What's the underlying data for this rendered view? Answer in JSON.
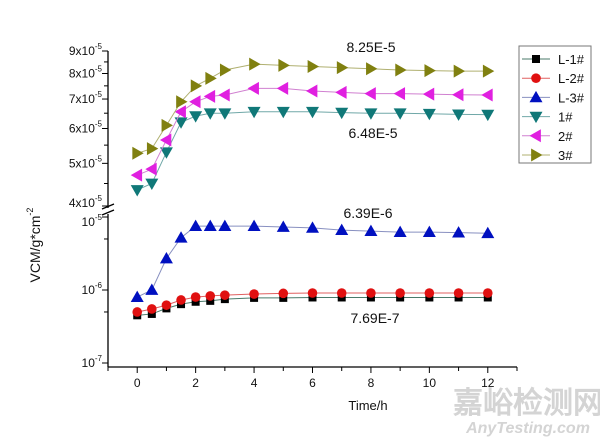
{
  "chart_data": {
    "type": "line",
    "xlabel": "Time/h",
    "ylabel": "VCM/g*cm",
    "ylabel_sup": "-2",
    "xlim": [
      -1,
      13
    ],
    "x_ticks": [
      "0",
      "2",
      "4",
      "6",
      "8",
      "10",
      "12"
    ],
    "y_scale": "log, broken axis",
    "y_upper_range": [
      4e-05,
      9e-05
    ],
    "y_lower_range": [
      1e-07,
      1e-05
    ],
    "y_upper_ticks": [
      {
        "value": 4e-05,
        "base": "4x10",
        "exp": "-5"
      },
      {
        "value": 5e-05,
        "base": "5x10",
        "exp": "-5"
      },
      {
        "value": 6e-05,
        "base": "6x10",
        "exp": "-5"
      },
      {
        "value": 7e-05,
        "base": "7x10",
        "exp": "-5"
      },
      {
        "value": 8e-05,
        "base": "8x10",
        "exp": "-5"
      },
      {
        "value": 9e-05,
        "base": "9x10",
        "exp": "-5"
      }
    ],
    "y_lower_ticks": [
      {
        "value": 1e-07,
        "base": "10",
        "exp": "-7"
      },
      {
        "value": 1e-06,
        "base": "10",
        "exp": "-6"
      },
      {
        "value": 1e-05,
        "base": "10",
        "exp": "-5"
      }
    ],
    "grid": false,
    "legend_position": "top-right",
    "x": [
      0,
      0.5,
      1,
      1.5,
      2,
      2.5,
      3,
      4,
      5,
      6,
      7,
      8,
      9,
      10,
      11,
      12
    ],
    "series": [
      {
        "name": "L-1#",
        "marker": "square",
        "color": "#000000",
        "line_color": "#4a7a6a",
        "axis": "lower",
        "values": [
          4.5e-07,
          4.7e-07,
          5.6e-07,
          6.4e-07,
          6.9e-07,
          7.1e-07,
          7.5e-07,
          7.8e-07,
          7.8e-07,
          7.9e-07,
          7.9e-07,
          7.9e-07,
          7.9e-07,
          7.9e-07,
          7.9e-07,
          7.9e-07
        ]
      },
      {
        "name": "L-2#",
        "marker": "circle",
        "color": "#e01010",
        "line_color": "#e06060",
        "axis": "lower",
        "values": [
          5e-07,
          5.5e-07,
          6.2e-07,
          7.3e-07,
          8e-07,
          8.3e-07,
          8.5e-07,
          8.8e-07,
          9e-07,
          9.1e-07,
          9.1e-07,
          9.1e-07,
          9.1e-07,
          9.1e-07,
          9.1e-07,
          9.1e-07
        ]
      },
      {
        "name": "L-3#",
        "marker": "triangle-up",
        "color": "#0010c0",
        "line_color": "#8890c0",
        "axis": "lower",
        "values": [
          8e-07,
          1e-06,
          2.7e-06,
          5.2e-06,
          7.5e-06,
          7.5e-06,
          7.5e-06,
          7.5e-06,
          7.3e-06,
          7.1e-06,
          6.6e-06,
          6.4e-06,
          6.2e-06,
          6.2e-06,
          6.1e-06,
          6e-06
        ]
      },
      {
        "name": "1#",
        "marker": "triangle-down",
        "color": "#107878",
        "line_color": "#70a8a8",
        "axis": "upper",
        "values": [
          4.35e-05,
          4.5e-05,
          5.3e-05,
          6.2e-05,
          6.4e-05,
          6.5e-05,
          6.5e-05,
          6.55e-05,
          6.55e-05,
          6.55e-05,
          6.52e-05,
          6.5e-05,
          6.5e-05,
          6.48e-05,
          6.46e-05,
          6.45e-05
        ]
      },
      {
        "name": "2#",
        "marker": "triangle-left",
        "color": "#e020e0",
        "line_color": "#d080d0",
        "axis": "upper",
        "values": [
          4.7e-05,
          4.85e-05,
          5.65e-05,
          6.55e-05,
          6.9e-05,
          7.1e-05,
          7.15e-05,
          7.4e-05,
          7.4e-05,
          7.3e-05,
          7.25e-05,
          7.2e-05,
          7.2e-05,
          7.18e-05,
          7.16e-05,
          7.15e-05
        ]
      },
      {
        "name": "3#",
        "marker": "triangle-right",
        "color": "#808010",
        "line_color": "#b0b070",
        "axis": "upper",
        "values": [
          5.27e-05,
          5.4e-05,
          6.1e-05,
          6.9e-05,
          7.5e-05,
          7.8e-05,
          8.15e-05,
          8.4e-05,
          8.35e-05,
          8.3e-05,
          8.25e-05,
          8.2e-05,
          8.15e-05,
          8.12e-05,
          8.1e-05,
          8.1e-05
        ]
      }
    ],
    "annotations": [
      "8.25E-5",
      "6.48E-5",
      "6.39E-6",
      "7.69E-7"
    ]
  },
  "watermark": {
    "cn": "嘉峪检测网",
    "en": "AnyTesting.com"
  }
}
